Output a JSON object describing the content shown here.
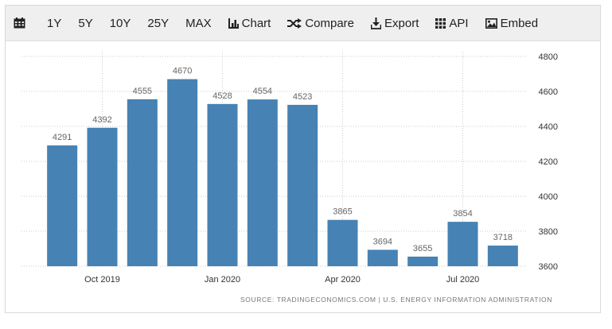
{
  "toolbar": {
    "icons": {
      "calendar": "calendar-icon",
      "chart": "bar-chart-icon",
      "compare": "shuffle-icon",
      "export": "download-icon",
      "api": "grid-icon",
      "embed": "image-icon"
    },
    "ranges": [
      "1Y",
      "5Y",
      "10Y",
      "25Y",
      "MAX"
    ],
    "chart_label": "Chart",
    "compare_label": "Compare",
    "export_label": "Export",
    "api_label": "API",
    "embed_label": "Embed"
  },
  "colors": {
    "bar": "#4682b4",
    "grid": "#cccccc",
    "axis_text": "#333333",
    "label_text": "#666666"
  },
  "source": "SOURCE: TRADINGECONOMICS.COM  |  U.S. ENERGY INFORMATION ADMINISTRATION",
  "chart_data": {
    "type": "bar",
    "categories": [
      "Sep 2019",
      "Oct 2019",
      "Nov 2019",
      "Dec 2019",
      "Jan 2020",
      "Feb 2020",
      "Mar 2020",
      "Apr 2020",
      "May 2020",
      "Jun 2020",
      "Jul 2020",
      "Aug 2020"
    ],
    "values": [
      4291,
      4392,
      4555,
      4670,
      4528,
      4554,
      4523,
      3865,
      3694,
      3655,
      3854,
      3718
    ],
    "x_tick_labels": [
      {
        "label": "Oct 2019",
        "category_index": 1
      },
      {
        "label": "Jan 2020",
        "category_index": 4
      },
      {
        "label": "Apr 2020",
        "category_index": 7
      },
      {
        "label": "Jul 2020",
        "category_index": 10
      }
    ],
    "y_ticks": [
      3600,
      3800,
      4000,
      4200,
      4400,
      4600,
      4800
    ],
    "ylim": [
      3600,
      4800
    ],
    "y_axis_side": "right",
    "grid": true,
    "title": "",
    "xlabel": "",
    "ylabel": ""
  }
}
